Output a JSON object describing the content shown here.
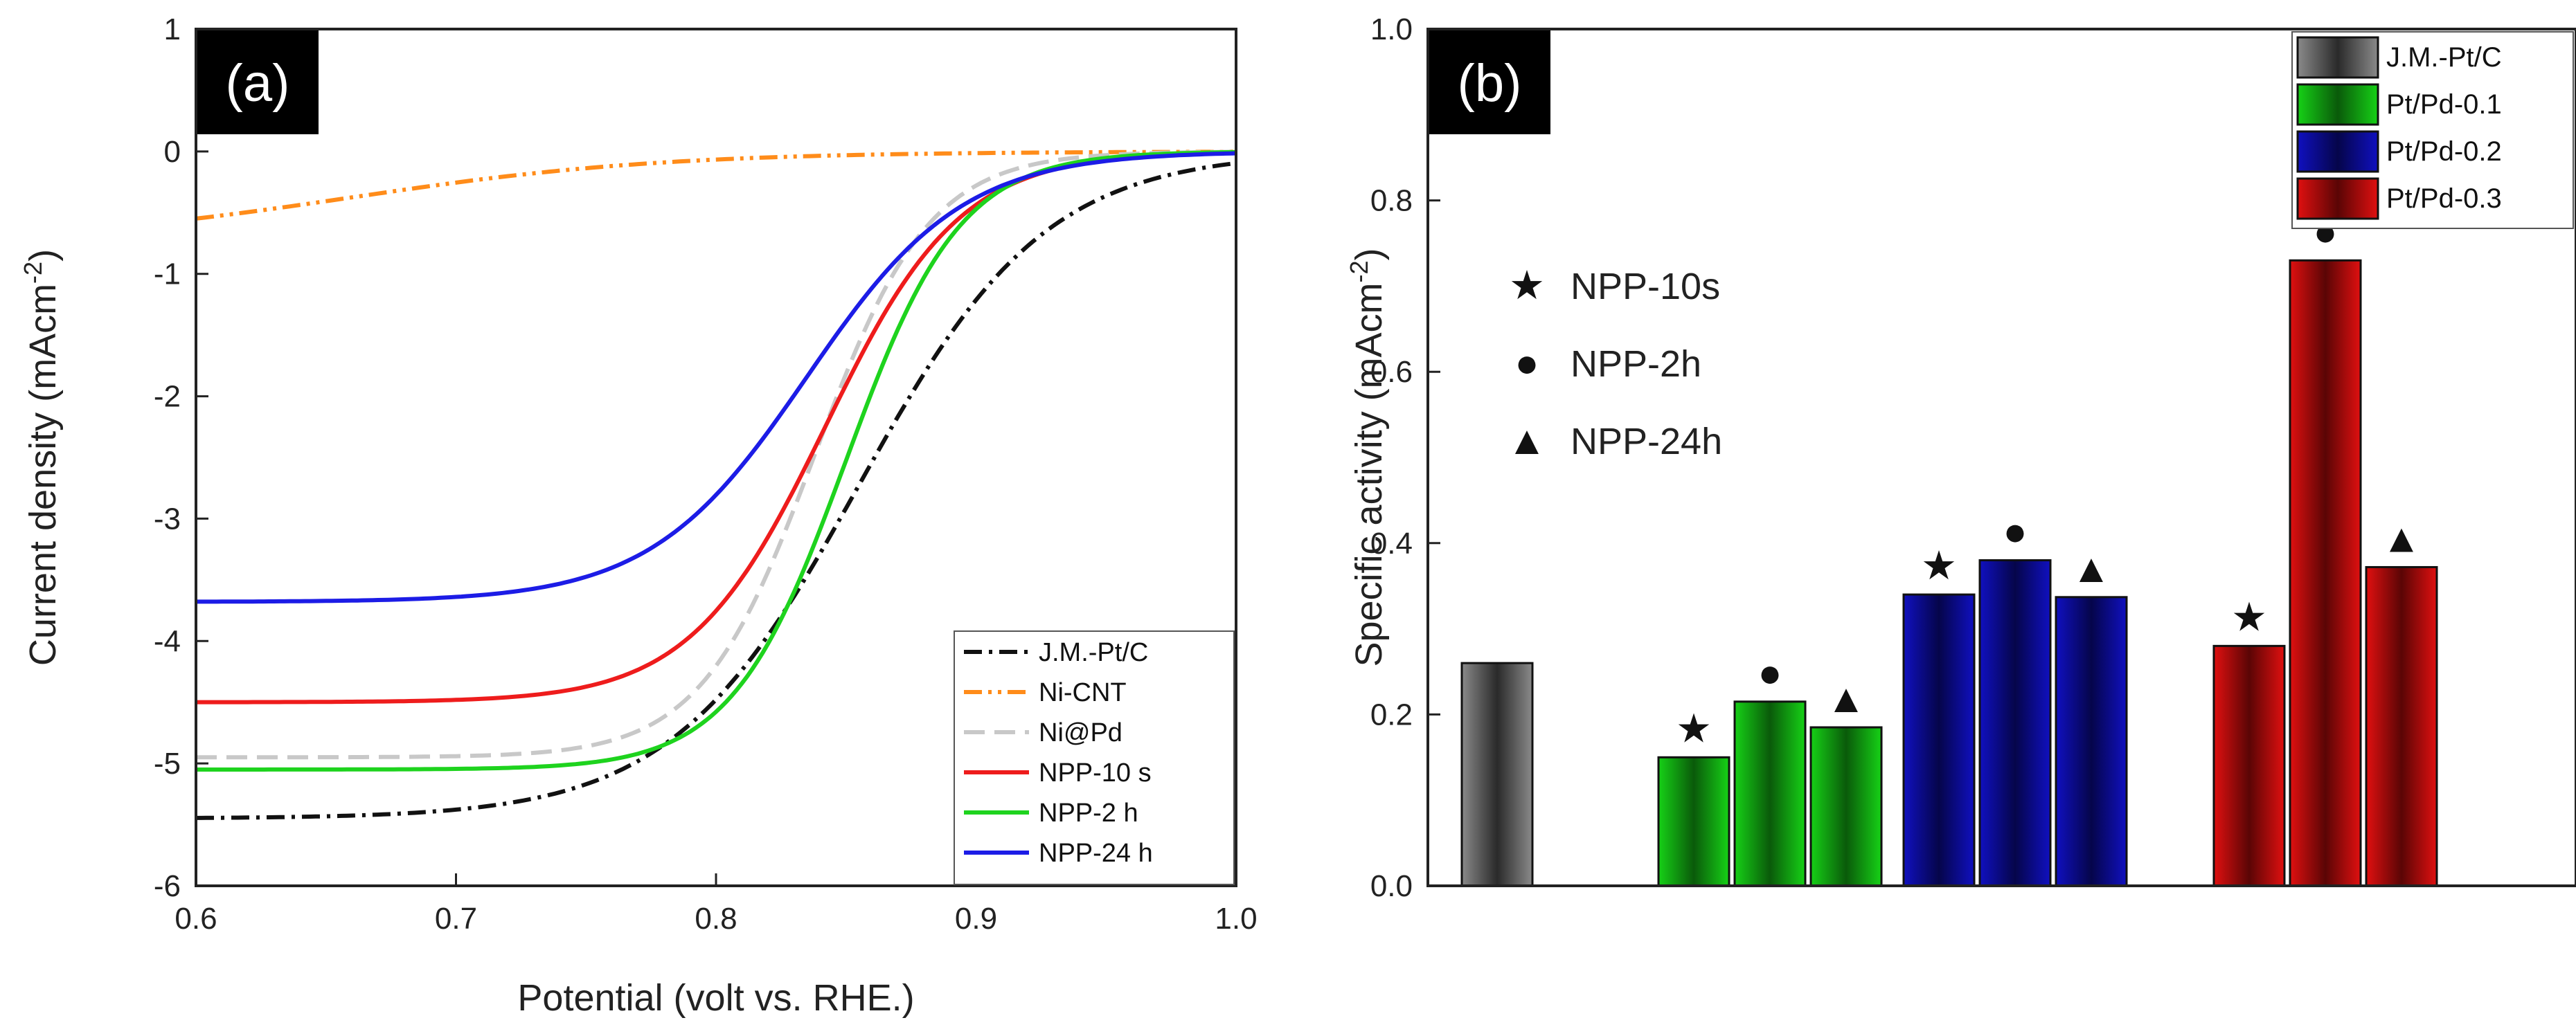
{
  "chart_data": [
    {
      "type": "line",
      "panel_label": "(a)",
      "xlabel": "Potential (volt vs. RHE.)",
      "ylabel": "Current density (mAcm",
      "ylabel_sup": "-2",
      "ylabel_close": ")",
      "xlim": [
        0.6,
        1.0
      ],
      "ylim": [
        -6,
        1
      ],
      "x_ticks": [
        "0.6",
        "0.7",
        "0.8",
        "0.9",
        "1.0"
      ],
      "y_ticks": [
        "1",
        "0",
        "-1",
        "-2",
        "-3",
        "-4",
        "-5",
        "-6"
      ],
      "legend_position": "bottom-right",
      "series": [
        {
          "name": "J.M.-Pt/C",
          "color": "#111111",
          "dash": "dashdot",
          "limit": -5.45,
          "half_wave": 0.855,
          "width": 0.036
        },
        {
          "name": "Ni-CNT",
          "color": "#ff8c1a",
          "dash": "dashdotdot",
          "limit": -0.75,
          "half_wave": 0.66,
          "width": 0.06
        },
        {
          "name": "Ni@Pd",
          "color": "#c8c8c8",
          "dash": "dashed",
          "limit": -4.95,
          "half_wave": 0.838,
          "width": 0.022
        },
        {
          "name": "NPP-10 s",
          "color": "#ee1c1c",
          "dash": "solid",
          "limit": -4.5,
          "half_wave": 0.842,
          "width": 0.026
        },
        {
          "name": "NPP-2 h",
          "color": "#1ed31e",
          "dash": "solid",
          "limit": -5.05,
          "half_wave": 0.85,
          "width": 0.022
        },
        {
          "name": "NPP-24 h",
          "color": "#1c1ce6",
          "dash": "solid",
          "limit": -3.68,
          "half_wave": 0.835,
          "width": 0.03
        }
      ]
    },
    {
      "type": "bar",
      "panel_label": "(b)",
      "ylabel": "Specific activity (mAcm",
      "ylabel_sup": "-2",
      "ylabel_close": ")",
      "ylim": [
        0.0,
        1.0
      ],
      "y_ticks": [
        "0.0",
        "0.2",
        "0.4",
        "0.6",
        "0.8",
        "1.0"
      ],
      "legend_position": "top-right",
      "legend": [
        {
          "name": "J.M.-Pt/C",
          "color": "#8a8a8a"
        },
        {
          "name": "Pt/Pd-0.1",
          "color": "#16d116"
        },
        {
          "name": "Pt/Pd-0.2",
          "color": "#1010c0"
        },
        {
          "name": "Pt/Pd-0.3",
          "color": "#e01010"
        }
      ],
      "marker_legend": [
        {
          "symbol": "★",
          "name": "NPP-10s"
        },
        {
          "symbol": "●",
          "name": "NPP-2h"
        },
        {
          "symbol": "▲",
          "name": "NPP-24h"
        }
      ],
      "groups": [
        {
          "name": "J.M.-Pt/C",
          "bars": [
            {
              "value": 0.26,
              "marker": ""
            }
          ]
        },
        {
          "name": "Pt/Pd-0.1",
          "bars": [
            {
              "value": 0.15,
              "marker": "★"
            },
            {
              "value": 0.215,
              "marker": "●"
            },
            {
              "value": 0.185,
              "marker": "▲"
            }
          ]
        },
        {
          "name": "Pt/Pd-0.2",
          "bars": [
            {
              "value": 0.34,
              "marker": "★"
            },
            {
              "value": 0.38,
              "marker": "●"
            },
            {
              "value": 0.337,
              "marker": "▲"
            }
          ]
        },
        {
          "name": "Pt/Pd-0.3",
          "bars": [
            {
              "value": 0.28,
              "marker": "★"
            },
            {
              "value": 0.73,
              "marker": "●"
            },
            {
              "value": 0.372,
              "marker": "▲"
            }
          ]
        }
      ]
    }
  ]
}
